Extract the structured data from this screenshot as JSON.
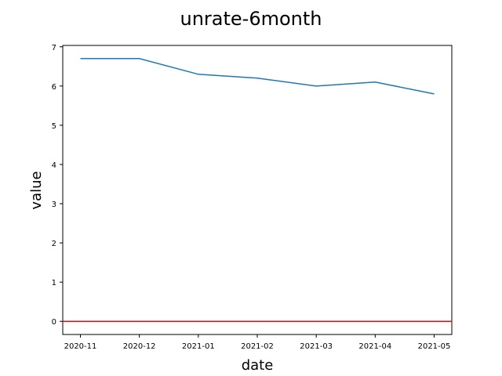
{
  "chart_data": {
    "type": "line",
    "title": "unrate-6month",
    "xlabel": "date",
    "ylabel": "value",
    "x": [
      "2020-11",
      "2020-12",
      "2021-01",
      "2021-02",
      "2021-03",
      "2021-04",
      "2021-05"
    ],
    "series": [
      {
        "values": [
          6.7,
          6.7,
          6.3,
          6.2,
          6.0,
          6.1,
          5.8
        ],
        "color": "#1f77b4"
      }
    ],
    "reference_line": {
      "y": 0,
      "color": "#ff0000"
    },
    "ylim": [
      -0.335,
      7.035
    ],
    "yticks": [
      0,
      1,
      2,
      3,
      4,
      5,
      6,
      7
    ],
    "grid": false,
    "legend": "none"
  }
}
